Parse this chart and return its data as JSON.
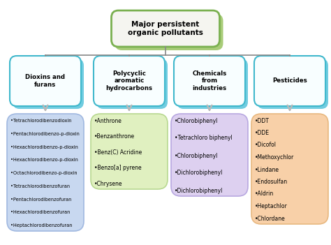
{
  "title": "Major persistent\norganic pollutants",
  "title_box_facecolor": "#f5f5f0",
  "title_box_edgecolor": "#7ab050",
  "title_shadow_color": "#a8cc78",
  "categories": [
    "Dioxins and\nfurans",
    "Polycyclic\naromatic\nhydrocarbons",
    "Chemicals\nfrom\nindustries",
    "Pesticides"
  ],
  "cat_box_facecolor": "#f8feff",
  "cat_box_edgecolor": "#40b8cc",
  "cat_shadow_color": "#70cce0",
  "detail_boxes": [
    {
      "items": [
        "•Tetrachlorodibenzodioxin",
        "•Pentachlorodibenzo-p-dioxin",
        "•Hexachlorodibenzo-p-dioxin",
        "•Hexachlorodibenzo-p-dioxin",
        "•Octachlorodibenzo-p-dioxin",
        "•Tetrachlorodibenzofuran",
        "•Pentachlorodibenzofuran",
        "•Hexachlorodibenzofuran",
        "•Heptachlorodibenzofuran"
      ],
      "bg_color": "#c8d8f0",
      "edge_color": "#a0b8e0"
    },
    {
      "items": [
        "•Anthrone",
        "•Benzanthrone",
        "•Benz(C) Acridine",
        "•Benzo[a] pyrene",
        "•Chrysene"
      ],
      "bg_color": "#e0f0c0",
      "edge_color": "#b8d890"
    },
    {
      "items": [
        "•Chlorobiphenyl",
        "•Tetrachloro biphenyl",
        "•Chlorobiphenyl",
        "•Dichlorobiphenyl",
        "•Dichlorobiphenyl"
      ],
      "bg_color": "#ddd0f0",
      "edge_color": "#b8a8e0"
    },
    {
      "items": [
        "•DDT",
        "•DDE",
        "•Dicofol",
        "•Methoxychlor",
        "•Lindane",
        "•Endosulfan",
        "•Aldrin",
        "•Heptachlor",
        "•Chlordane"
      ],
      "bg_color": "#f8d0a8",
      "edge_color": "#e8b880"
    }
  ],
  "arrow_color": "#b8b8b8",
  "line_color": "#888888",
  "text_color": "#000000",
  "bg_color": "#ffffff"
}
